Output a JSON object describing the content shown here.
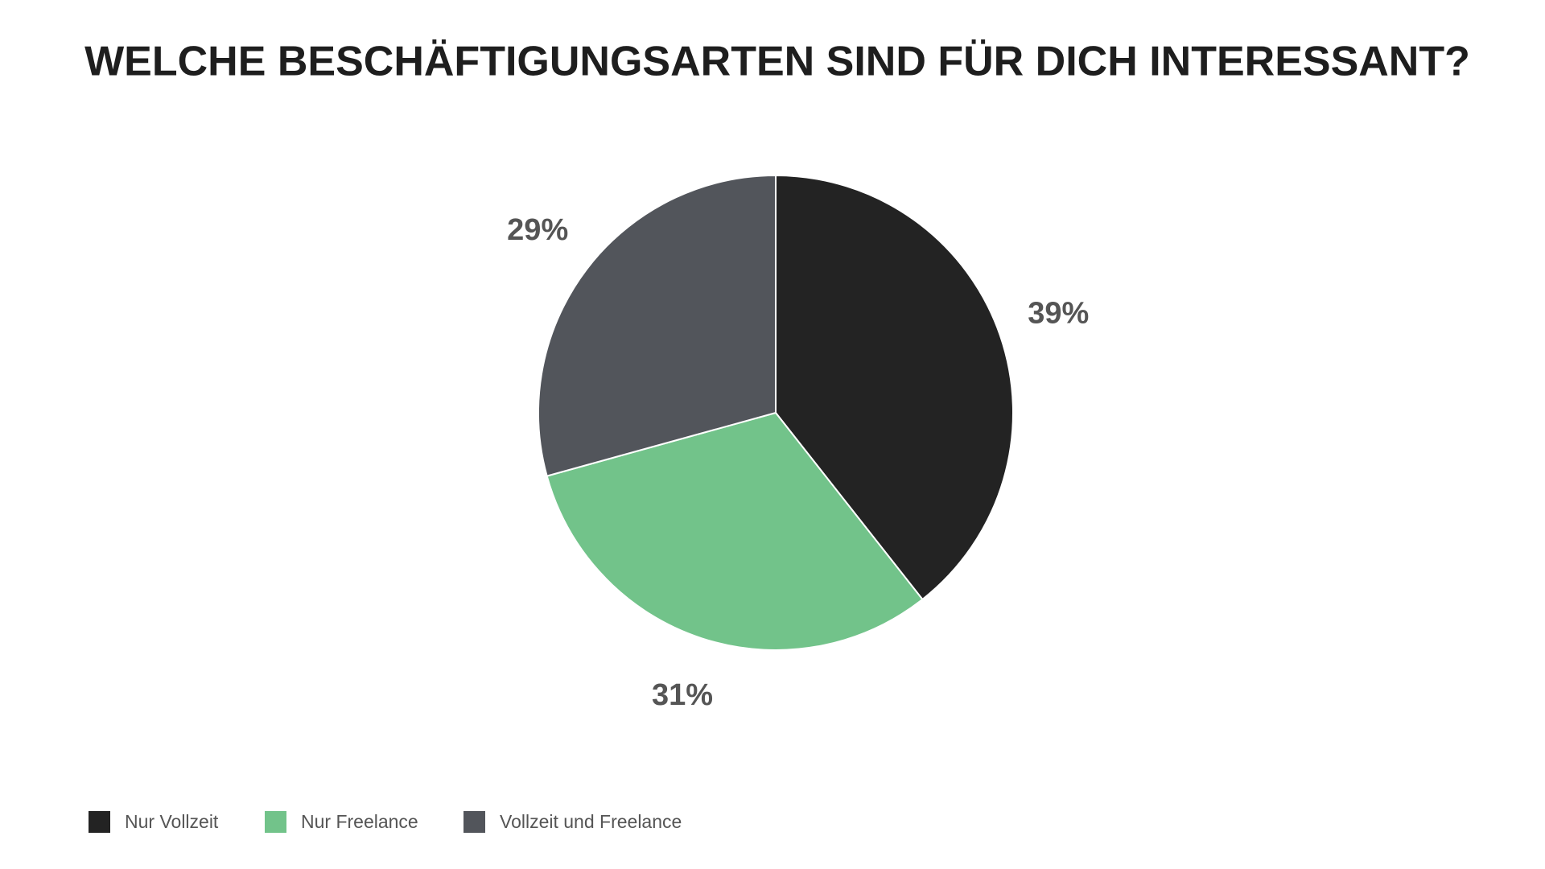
{
  "chart_data": {
    "type": "pie",
    "title": "WELCHE BESCHÄFTIGUNGSARTEN SIND FÜR DICH INTERESSANT?",
    "categories": [
      "Nur Vollzeit",
      "Nur Freelance",
      "Vollzeit und Freelance"
    ],
    "values": [
      39,
      31,
      29
    ],
    "value_labels": [
      "39%",
      "31%",
      "29%"
    ],
    "colors": [
      "#232323",
      "#72c38a",
      "#52555b"
    ],
    "legend": "bottom-left"
  }
}
